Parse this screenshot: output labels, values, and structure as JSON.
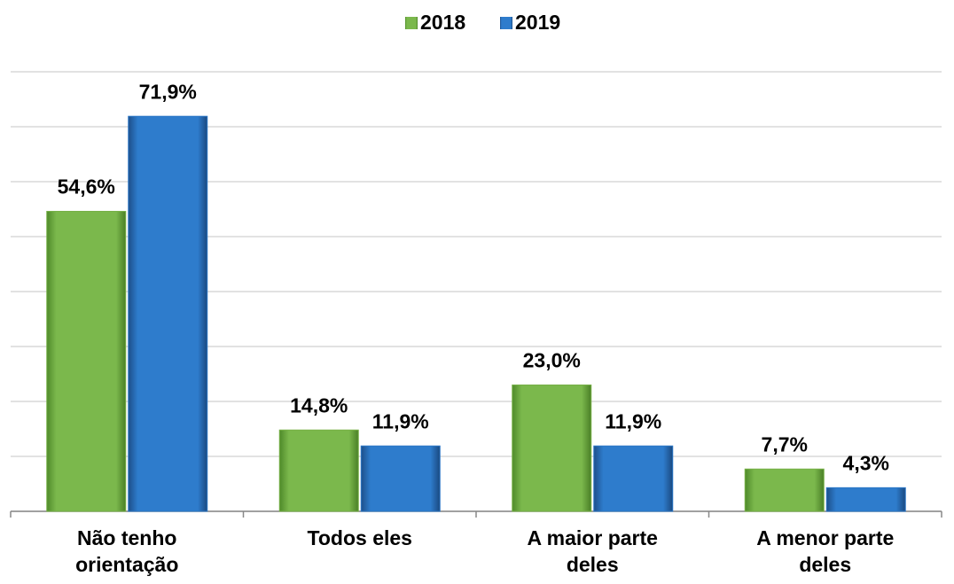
{
  "chart_data": {
    "type": "bar",
    "categories": [
      "Não tenho orientação",
      "Todos eles",
      "A maior parte deles",
      "A menor parte deles"
    ],
    "series": [
      {
        "name": "2018",
        "color": "#76b046",
        "values": [
          54.6,
          14.8,
          23.0,
          7.7
        ],
        "value_labels": [
          "54,6%",
          "14,8%",
          "23,0%",
          "7,7%"
        ]
      },
      {
        "name": "2019",
        "color": "#2b77c6",
        "values": [
          71.9,
          11.9,
          11.9,
          4.3
        ],
        "value_labels": [
          "71,9%",
          "11,9%",
          "11,9%",
          "4,3%"
        ]
      }
    ],
    "ylim": [
      0,
      80
    ],
    "yticks": [
      0,
      10,
      20,
      30,
      40,
      50,
      60,
      70,
      80
    ],
    "grid": true,
    "legend": "top"
  }
}
